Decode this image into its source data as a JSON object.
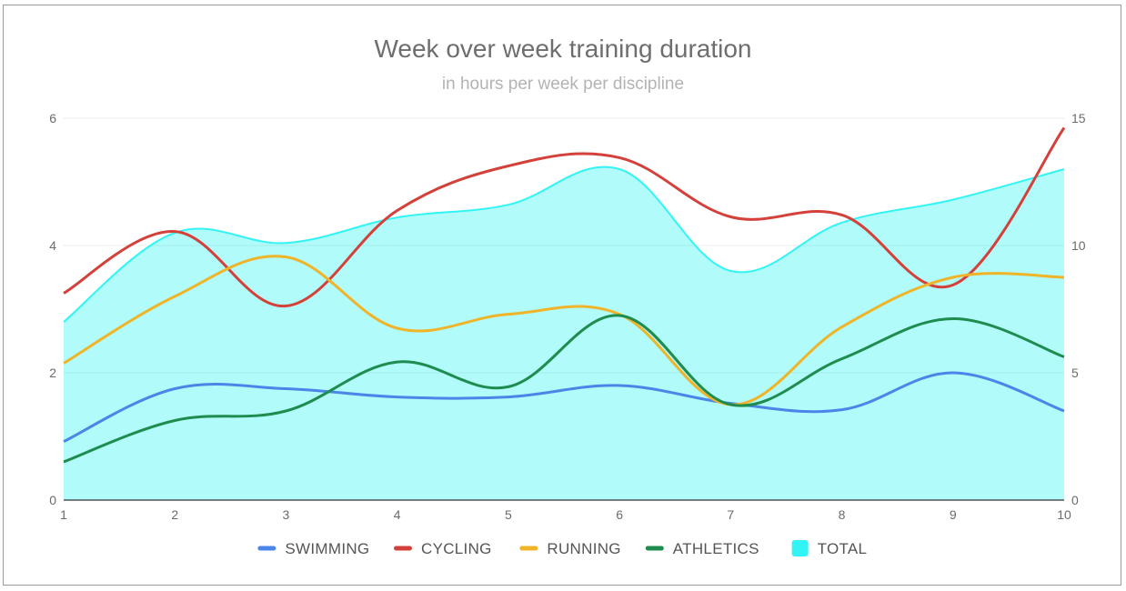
{
  "chart_data": {
    "type": "line",
    "title": "Week over week training duration",
    "subtitle": "in hours per week per discipline",
    "x": [
      1,
      2,
      3,
      4,
      5,
      6,
      7,
      8,
      9,
      10
    ],
    "x_ticks": [
      "1",
      "2",
      "3",
      "4",
      "5",
      "6",
      "7",
      "8",
      "9",
      "10"
    ],
    "y_left": {
      "range": [
        0,
        6
      ],
      "ticks": [
        "0",
        "2",
        "4",
        "6"
      ]
    },
    "y_right": {
      "range": [
        0,
        15
      ],
      "ticks": [
        "0",
        "5",
        "10",
        "15"
      ]
    },
    "grid": true,
    "legend_position": "bottom",
    "series": [
      {
        "name": "SWIMMING",
        "color": "#4a86e8",
        "axis": "left",
        "kind": "line",
        "values": [
          0.92,
          1.75,
          1.75,
          1.62,
          1.62,
          1.8,
          1.52,
          1.42,
          2.0,
          1.4
        ]
      },
      {
        "name": "CYCLING",
        "color": "#d4403a",
        "axis": "left",
        "kind": "line",
        "values": [
          3.25,
          4.22,
          3.05,
          4.55,
          5.25,
          5.38,
          4.45,
          4.48,
          3.38,
          5.85
        ]
      },
      {
        "name": "RUNNING",
        "color": "#f0b429",
        "axis": "left",
        "kind": "line",
        "values": [
          2.15,
          3.2,
          3.82,
          2.7,
          2.92,
          2.92,
          1.5,
          2.72,
          3.5,
          3.5
        ]
      },
      {
        "name": "ATHLETICS",
        "color": "#1e8c4e",
        "axis": "left",
        "kind": "line",
        "values": [
          0.6,
          1.25,
          1.4,
          2.17,
          1.78,
          2.9,
          1.5,
          2.22,
          2.85,
          2.25
        ]
      },
      {
        "name": "TOTAL",
        "color": "#33f4f4",
        "axis": "right",
        "kind": "area",
        "values": [
          7.0,
          10.5,
          10.1,
          11.1,
          11.6,
          13.0,
          9.0,
          10.9,
          11.8,
          13.0
        ]
      }
    ]
  }
}
